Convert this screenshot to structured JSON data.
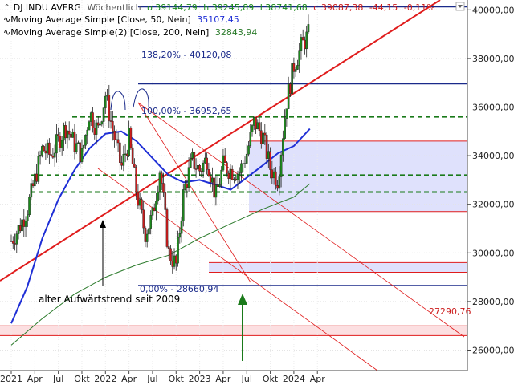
{
  "chart_data": {
    "type": "candlestick",
    "legend": {
      "instrument": "DJ INDU AVERG",
      "timeframe": "Wöchentlich",
      "open": "o 39144,79",
      "high": "h 39245,89",
      "low": "l 38741,68",
      "close": "c 39087,38",
      "change": "-44,15",
      "change_pct": "-0,11%",
      "ma50_label": "Moving Average Simple [Close, 50, Nein]",
      "ma50_value": "35107,45",
      "ma200_label": "Moving Average Simple(2) [Close, 200, Nein]",
      "ma200_value": "32843,94"
    },
    "colors": {
      "up": "#1c8a1c",
      "down": "#cc1b1b",
      "ma50": "#1f2fd6",
      "ma200": "#2a7a2a",
      "trend": "#e01c1c",
      "fib": "#1a2a8a",
      "support": "#1a7a1a",
      "zone_blue": "#d9dcfb",
      "zone_pink": "#fbd9dc"
    },
    "x_axis": {
      "ticks": [
        "2021",
        "Apr",
        "Jul",
        "Okt",
        "2022",
        "Apr",
        "Jul",
        "Okt",
        "2023",
        "Apr",
        "Jul",
        "Okt",
        "2024",
        "Apr"
      ],
      "range": [
        "2021-01",
        "2024-05"
      ]
    },
    "y_axis": {
      "ticks": [
        "26000,00",
        "28000,00",
        "30000,00",
        "32000,00",
        "34000,00",
        "36000,00",
        "38000,00",
        "40000,00"
      ],
      "tick_values": [
        26000,
        28000,
        30000,
        32000,
        34000,
        36000,
        38000,
        40000
      ],
      "range": [
        25200,
        41700
      ]
    },
    "weekly_close_approx": [
      [
        2021.0,
        30500
      ],
      [
        2021.08,
        31000
      ],
      [
        2021.17,
        31800
      ],
      [
        2021.25,
        33000
      ],
      [
        2021.33,
        34300
      ],
      [
        2021.42,
        34000
      ],
      [
        2021.5,
        34600
      ],
      [
        2021.58,
        35200
      ],
      [
        2021.67,
        34500
      ],
      [
        2021.75,
        34000
      ],
      [
        2021.83,
        35800
      ],
      [
        2021.92,
        35000
      ],
      [
        2022.0,
        36500
      ],
      [
        2022.08,
        35000
      ],
      [
        2022.17,
        33500
      ],
      [
        2022.25,
        34700
      ],
      [
        2022.33,
        32500
      ],
      [
        2022.42,
        30800
      ],
      [
        2022.5,
        31500
      ],
      [
        2022.58,
        33500
      ],
      [
        2022.67,
        30000
      ],
      [
        2022.75,
        29500
      ],
      [
        2022.83,
        32500
      ],
      [
        2022.92,
        33800
      ],
      [
        2023.0,
        33400
      ],
      [
        2023.08,
        33900
      ],
      [
        2023.17,
        32300
      ],
      [
        2023.25,
        33600
      ],
      [
        2023.33,
        33400
      ],
      [
        2023.42,
        33300
      ],
      [
        2023.5,
        34100
      ],
      [
        2023.58,
        35400
      ],
      [
        2023.67,
        34800
      ],
      [
        2023.75,
        33500
      ],
      [
        2023.83,
        33000
      ],
      [
        2023.92,
        36200
      ],
      [
        2024.0,
        37700
      ],
      [
        2024.08,
        38500
      ],
      [
        2024.17,
        39087
      ]
    ],
    "ma50_approx": [
      [
        2021.0,
        27100
      ],
      [
        2021.17,
        28600
      ],
      [
        2021.33,
        30600
      ],
      [
        2021.5,
        32200
      ],
      [
        2021.67,
        33400
      ],
      [
        2021.83,
        34300
      ],
      [
        2022.0,
        34900
      ],
      [
        2022.17,
        35000
      ],
      [
        2022.33,
        34600
      ],
      [
        2022.5,
        33900
      ],
      [
        2022.67,
        33200
      ],
      [
        2022.83,
        32900
      ],
      [
        2023.0,
        33000
      ],
      [
        2023.17,
        32800
      ],
      [
        2023.33,
        32600
      ],
      [
        2023.5,
        33100
      ],
      [
        2023.67,
        33600
      ],
      [
        2023.83,
        34100
      ],
      [
        2024.0,
        34400
      ],
      [
        2024.17,
        35107
      ]
    ],
    "ma200_approx": [
      [
        2021.0,
        26200
      ],
      [
        2021.33,
        27300
      ],
      [
        2021.67,
        28300
      ],
      [
        2022.0,
        29000
      ],
      [
        2022.33,
        29500
      ],
      [
        2022.67,
        29900
      ],
      [
        2023.0,
        30600
      ],
      [
        2023.33,
        31200
      ],
      [
        2023.67,
        31800
      ],
      [
        2024.0,
        32300
      ],
      [
        2024.17,
        32844
      ]
    ],
    "horizontal_levels": [
      {
        "value": 40120.08,
        "label": "138,20% - 40120,08",
        "kind": "fib"
      },
      {
        "value": 36952.65,
        "label": "100,00% - 36952,65",
        "kind": "fib"
      },
      {
        "value": 28660.94,
        "label": "0,00% - 28660,94",
        "kind": "fib"
      },
      {
        "value": 35600,
        "label": "",
        "kind": "support-dashed"
      },
      {
        "value": 33200,
        "label": "",
        "kind": "support-dashed"
      },
      {
        "value": 32500,
        "label": "",
        "kind": "support-dashed"
      }
    ],
    "zones": [
      {
        "from": 31700,
        "to": 34600,
        "color": "blue"
      },
      {
        "from": 29200,
        "to": 29600,
        "color": "blue"
      },
      {
        "from": 26600,
        "to": 27000,
        "color": "pink"
      }
    ],
    "trendlines": [
      {
        "name": "long-term-uptrend"
      },
      {
        "name": "downtrend-channel"
      }
    ],
    "annotations": {
      "uptrend_text": "alter Aufwärtstrend seit 2009",
      "downtrend_target": "27290,76"
    }
  }
}
